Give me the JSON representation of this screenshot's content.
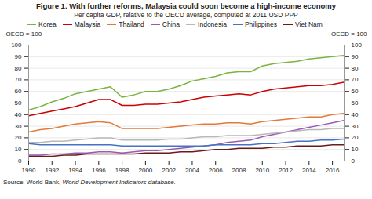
{
  "chart_data": {
    "type": "line",
    "title": "Figure 1. With further reforms, Malaysia could soon become a high-income economy",
    "subtitle": "Per capita GDP, relative to the OECD average, computed at 2011 USD PPP",
    "ylabel": "OECD = 100",
    "y2label": "OECD = 100",
    "annotations": [
      "Source: World Bank, ",
      "World Development Indicators database."
    ],
    "x": [
      1990,
      1991,
      1992,
      1993,
      1994,
      1995,
      1996,
      1997,
      1998,
      1999,
      2000,
      2001,
      2002,
      2003,
      2004,
      2005,
      2006,
      2007,
      2008,
      2009,
      2010,
      2011,
      2012,
      2013,
      2014,
      2015,
      2016,
      2017
    ],
    "series": [
      {
        "name": "Korea",
        "color": "#7ab33f",
        "values": [
          44,
          47,
          51,
          54,
          58,
          60,
          62,
          64,
          55,
          57,
          60,
          60,
          62,
          65,
          69,
          71,
          73,
          76,
          77,
          77,
          82,
          84,
          85,
          86,
          88,
          89,
          90,
          91
        ]
      },
      {
        "name": "Malaysia",
        "color": "#cc0000",
        "values": [
          39,
          41,
          43,
          45,
          47,
          50,
          53,
          53,
          48,
          48,
          49,
          49,
          50,
          51,
          53,
          55,
          56,
          57,
          58,
          57,
          60,
          62,
          63,
          64,
          65,
          65,
          66,
          68
        ]
      },
      {
        "name": "Thailand",
        "color": "#e07b39",
        "values": [
          25,
          27,
          28,
          30,
          32,
          33,
          34,
          33,
          28,
          28,
          28,
          28,
          29,
          30,
          31,
          32,
          32,
          33,
          33,
          32,
          34,
          35,
          36,
          37,
          38,
          38,
          40,
          41
        ]
      },
      {
        "name": "China",
        "color": "#9b59b6",
        "values": [
          5,
          5,
          6,
          6,
          7,
          7,
          8,
          8,
          7,
          8,
          9,
          9,
          10,
          11,
          12,
          13,
          14,
          16,
          17,
          18,
          21,
          23,
          25,
          27,
          29,
          31,
          33,
          35
        ]
      },
      {
        "name": "Indonesia",
        "color": "#b8b8b8",
        "values": [
          16,
          16,
          17,
          17,
          18,
          19,
          20,
          20,
          18,
          18,
          18,
          18,
          19,
          19,
          20,
          21,
          21,
          22,
          22,
          22,
          23,
          24,
          25,
          26,
          27,
          27,
          28,
          28
        ]
      },
      {
        "name": "Philippines",
        "color": "#4472c4",
        "values": [
          15,
          14,
          14,
          14,
          14,
          14,
          14,
          14,
          13,
          13,
          13,
          13,
          13,
          13,
          13,
          13,
          14,
          14,
          14,
          14,
          15,
          15,
          16,
          17,
          17,
          18,
          18,
          19
        ]
      },
      {
        "name": "Viet Nam",
        "color": "#6b1a1a",
        "values": [
          4,
          4,
          4,
          5,
          5,
          6,
          6,
          6,
          6,
          6,
          7,
          7,
          7,
          8,
          8,
          9,
          10,
          10,
          11,
          11,
          11,
          12,
          12,
          13,
          13,
          13,
          14,
          14
        ]
      }
    ],
    "xlim": [
      1990,
      2017
    ],
    "xticks": [
      1990,
      1992,
      1994,
      1996,
      1998,
      2000,
      2002,
      2004,
      2006,
      2008,
      2010,
      2012,
      2014,
      2016
    ],
    "ylim": [
      0,
      100
    ],
    "yticks": [
      0,
      10,
      20,
      30,
      40,
      50,
      60,
      70,
      80,
      90,
      100
    ],
    "y2lim": [
      0,
      100
    ],
    "y2ticks": [
      0,
      10,
      20,
      30,
      40,
      50,
      60,
      70,
      80,
      90,
      100
    ],
    "grid": true,
    "legend": "upper left"
  }
}
